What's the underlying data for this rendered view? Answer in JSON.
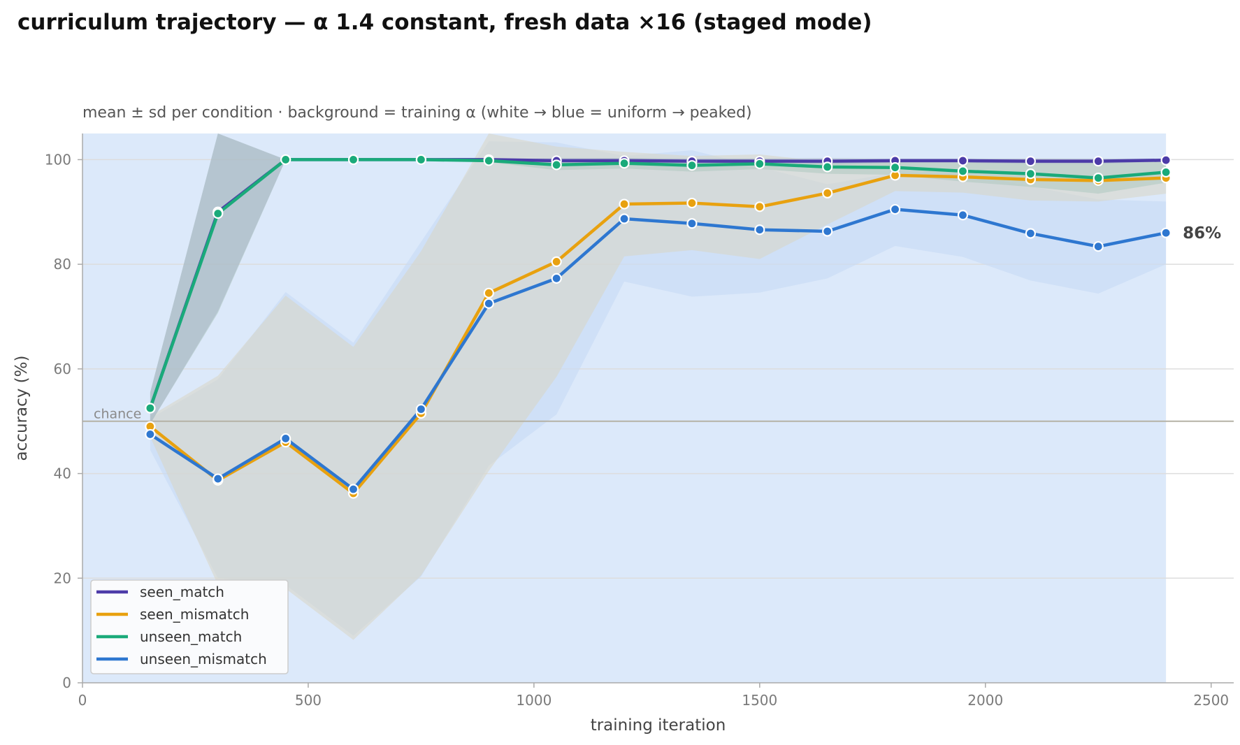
{
  "chart_data": {
    "type": "line",
    "title": "curriculum trajectory — α 1.4 constant, fresh data ×16 (staged mode)",
    "subtitle": "mean ± sd per condition · background = training α (white → blue = uniform → peaked)",
    "xlabel": "training iteration",
    "ylabel": "accuracy (%)",
    "xlim": [
      0,
      2550
    ],
    "ylim": [
      0,
      105
    ],
    "xticks": [
      "0",
      "500",
      "1000",
      "1500",
      "2000",
      "2500"
    ],
    "yticks": [
      "0",
      "20",
      "40",
      "60",
      "80",
      "100"
    ],
    "grid": "horizontal",
    "legend_position": "bottom-left",
    "background": {
      "color": "#dce9fa",
      "x_range": [
        0,
        2400
      ]
    },
    "chance": {
      "label": "chance",
      "value": 50
    },
    "end_label": "86%",
    "x": [
      150,
      300,
      450,
      600,
      750,
      900,
      1050,
      1200,
      1350,
      1500,
      1650,
      1800,
      1950,
      2100,
      2250,
      2400
    ],
    "series": [
      {
        "name": "seen_match",
        "color": "#4c3ba8",
        "values": [
          52.5,
          90.0,
          100.0,
          100.0,
          100.0,
          100.0,
          99.8,
          99.8,
          99.7,
          99.7,
          99.7,
          99.8,
          99.8,
          99.7,
          99.7,
          99.9
        ],
        "sd": [
          3,
          19,
          0,
          0,
          0,
          0,
          0.5,
          0.5,
          0.5,
          0.5,
          0.6,
          0.4,
          0.4,
          0.5,
          0.5,
          0.3
        ],
        "band_color": "#aab6c8"
      },
      {
        "name": "seen_mismatch",
        "color": "#e8a10f",
        "values": [
          49.0,
          38.7,
          46.0,
          36.2,
          51.5,
          74.5,
          80.5,
          91.5,
          91.7,
          91.0,
          93.6,
          97.0,
          96.7,
          96.2,
          96.0,
          96.5
        ],
        "sd": [
          2,
          20,
          28,
          28,
          31,
          34,
          22,
          10,
          9,
          10,
          6,
          3,
          3,
          4,
          4,
          3
        ],
        "band_color": "#d9d6c4"
      },
      {
        "name": "unseen_match",
        "color": "#1aaa7a",
        "values": [
          52.5,
          89.7,
          100.0,
          100.0,
          100.0,
          99.8,
          99.0,
          99.3,
          98.9,
          99.2,
          98.6,
          98.5,
          97.8,
          97.3,
          96.5,
          97.6
        ],
        "sd": [
          3,
          19,
          0,
          0,
          0,
          0.3,
          1,
          1,
          1.2,
          1,
          1.3,
          1.4,
          2,
          2.5,
          3,
          2
        ],
        "band_color": "#aec8c0"
      },
      {
        "name": "unseen_mismatch",
        "color": "#2e77d0",
        "values": [
          47.5,
          39.0,
          46.7,
          37.0,
          52.3,
          72.5,
          77.3,
          88.7,
          87.8,
          86.6,
          86.3,
          90.5,
          89.4,
          85.9,
          83.4,
          86.0
        ],
        "sd": [
          3,
          19,
          28,
          28,
          32,
          31,
          26,
          12,
          14,
          12,
          9,
          7,
          8,
          9,
          9,
          6
        ],
        "band_color": "#c4d8f4"
      }
    ]
  }
}
